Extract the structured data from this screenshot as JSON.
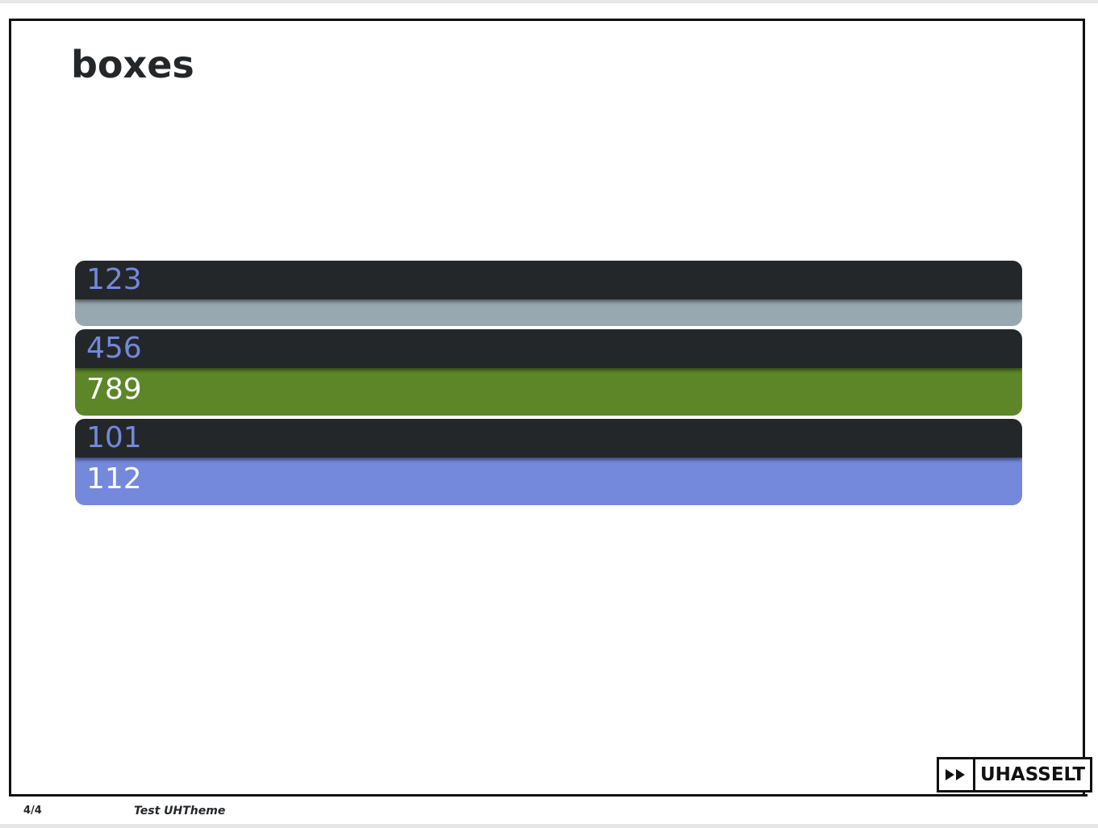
{
  "slide": {
    "title": "boxes"
  },
  "boxes": [
    {
      "header": "123",
      "body": "",
      "header_color": "#24272a",
      "header_text_color": "#7489db",
      "body_color": "#98a8b1"
    },
    {
      "header": "456",
      "body": "789",
      "header_color": "#24272a",
      "header_text_color": "#7489db",
      "body_color": "#5d8629"
    },
    {
      "header": "101",
      "body": "112",
      "header_color": "#24272a",
      "header_text_color": "#7489db",
      "body_color": "#7489db"
    }
  ],
  "footer": {
    "page_number": "4/4",
    "presentation_title": "Test UHTheme"
  },
  "logo": {
    "icon": "fast-forward-icon",
    "text": "UHASSELT"
  }
}
